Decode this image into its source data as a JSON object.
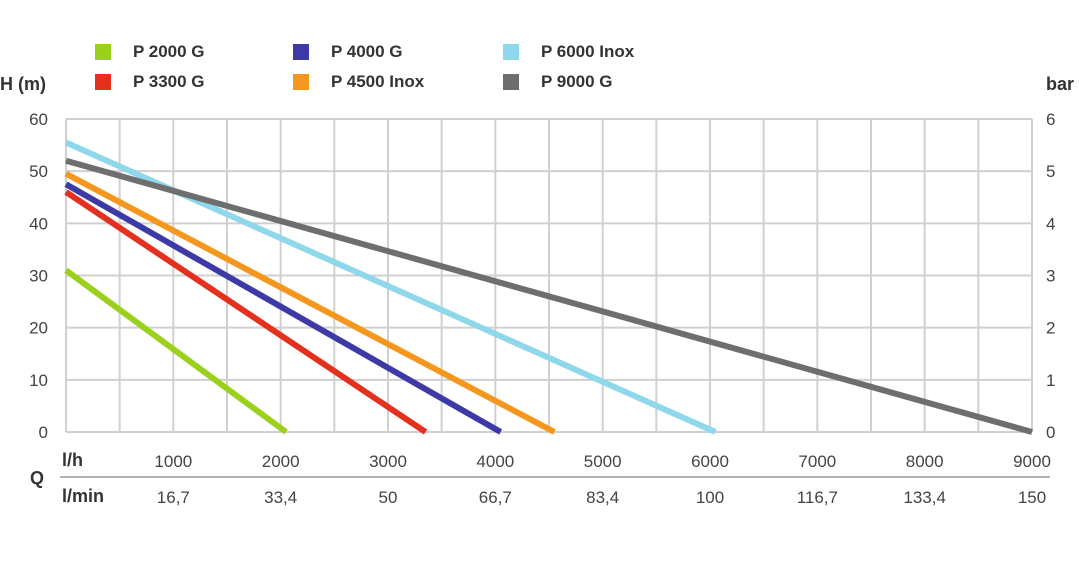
{
  "chart_data": {
    "type": "line",
    "left_axis_label": "H (m)",
    "right_axis_label": "bar",
    "q_label": "Q",
    "lh_label": "l/h",
    "lmin_label": "l/min",
    "y_ticks": [
      0,
      10,
      20,
      30,
      40,
      50,
      60
    ],
    "bar_ticks": [
      0,
      1,
      2,
      3,
      4,
      5,
      6
    ],
    "ylim": [
      0,
      60
    ],
    "xlim": [
      0,
      9000
    ],
    "x_ticks_lh": [
      "1000",
      "2000",
      "3000",
      "4000",
      "5000",
      "6000",
      "7000",
      "8000",
      "9000"
    ],
    "x_ticks_lmin": [
      "16,7",
      "33,4",
      "50",
      "66,7",
      "83,4",
      "100",
      "116,7",
      "133,4",
      "150"
    ],
    "grid": true,
    "legend_position": "top",
    "series": [
      {
        "name": "P 2000 G",
        "color": "#9bd11c",
        "x": [
          0,
          2050
        ],
        "y": [
          31,
          0
        ]
      },
      {
        "name": "P 3300 G",
        "color": "#e3301f",
        "x": [
          0,
          3350
        ],
        "y": [
          46,
          0
        ]
      },
      {
        "name": "P 4000 G",
        "color": "#3d3aa8",
        "x": [
          0,
          4050
        ],
        "y": [
          47.5,
          0
        ]
      },
      {
        "name": "P 4500 Inox",
        "color": "#f5961d",
        "x": [
          0,
          4550
        ],
        "y": [
          49.5,
          0
        ]
      },
      {
        "name": "P 6000 Inox",
        "color": "#8fd7ea",
        "x": [
          0,
          6050
        ],
        "y": [
          55.5,
          0
        ]
      },
      {
        "name": "P 9000 G",
        "color": "#6e6e6e",
        "x": [
          0,
          9000
        ],
        "y": [
          52,
          0
        ]
      }
    ]
  }
}
